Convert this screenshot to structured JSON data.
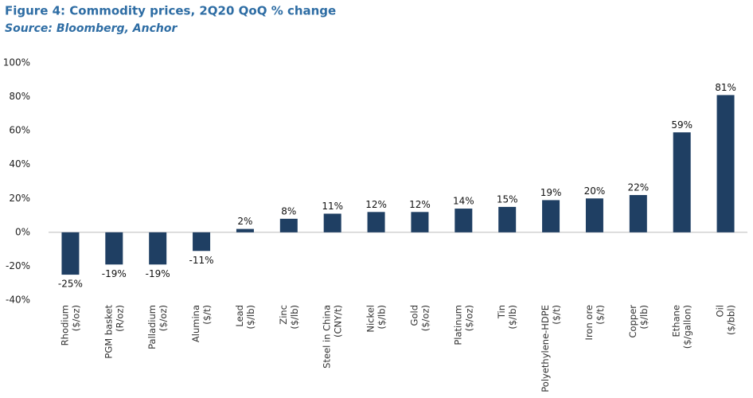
{
  "chart_data": {
    "type": "bar",
    "title": "Figure 4: Commodity prices, 2Q20 QoQ % change",
    "subtitle": "Source: Bloomberg, Anchor",
    "categories": [
      "Rhodium ($/oz)",
      "PGM basket (R/oz)",
      "Palladium ($/oz)",
      "Alumina ($/t)",
      "Lead ($/lb)",
      "Zinc ($/lb)",
      "Steel in China (CNY/t)",
      "Nickel ($/lb)",
      "Gold ($/oz)",
      "Platinum ($/oz)",
      "Tin ($/lb)",
      "Polyethylene-HDPE ($/t)",
      "Iron ore ($/t)",
      "Copper ($/lb)",
      "Ethane ($/gallon)",
      "Oil ($/bbl)"
    ],
    "values": [
      -25,
      -19,
      -19,
      -11,
      2,
      8,
      11,
      12,
      12,
      14,
      15,
      19,
      20,
      22,
      59,
      81
    ],
    "value_labels": [
      "-25%",
      "-19%",
      "-19%",
      "-11%",
      "2%",
      "8%",
      "11%",
      "12%",
      "12%",
      "14%",
      "15%",
      "19%",
      "20%",
      "22%",
      "59%",
      "81%"
    ],
    "color": "#1f3f63",
    "ylim": [
      -40,
      100
    ],
    "yticks": [
      {
        "value": -40,
        "label": "-40%"
      },
      {
        "value": -20,
        "label": "-20%"
      },
      {
        "value": 0,
        "label": "0%"
      },
      {
        "value": 20,
        "label": "20%"
      },
      {
        "value": 40,
        "label": "40%"
      },
      {
        "value": 60,
        "label": "60%"
      },
      {
        "value": 80,
        "label": "80%"
      },
      {
        "value": 100,
        "label": "100%"
      }
    ],
    "grid": false
  }
}
